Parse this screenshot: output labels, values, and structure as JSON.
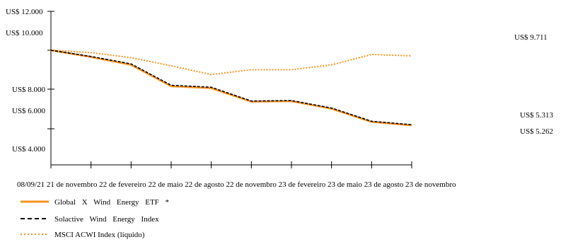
{
  "chart_data": {
    "type": "line",
    "x": [
      "08/09/21",
      "21 de novembro",
      "22 de fevereiro",
      "22 de maio",
      "22 de agosto",
      "22 de novembro",
      "23 de fevereiro",
      "23 de maio",
      "23 de agosto",
      "23 de novembro"
    ],
    "yticks": [
      "US$ 12.000",
      "US$ 10.000",
      "US$ 8.000",
      "US$ 6.000",
      "US$ 4.000"
    ],
    "series": [
      {
        "name": "Global X Wind Energy ETF *",
        "color": "#f7941d",
        "style": "solid",
        "values": [
          10000,
          9650,
          9250,
          8150,
          8050,
          7050,
          7090,
          6520,
          5520,
          5262
        ],
        "end_label": "US$ 5.262"
      },
      {
        "name": "Solactive Wind Energy Index",
        "color": "#000000",
        "style": "dashed",
        "values": [
          10000,
          9680,
          9300,
          8200,
          8100,
          7100,
          7140,
          6570,
          5570,
          5313
        ],
        "end_label": "US$ 5.313"
      },
      {
        "name": "MSCI ACWI Index (líquido)",
        "color": "#f7941d",
        "style": "dotted",
        "values": [
          10000,
          9880,
          9620,
          9200,
          8750,
          9000,
          9000,
          9250,
          9780,
          9711
        ],
        "end_label": "US$ 9.711"
      }
    ]
  }
}
